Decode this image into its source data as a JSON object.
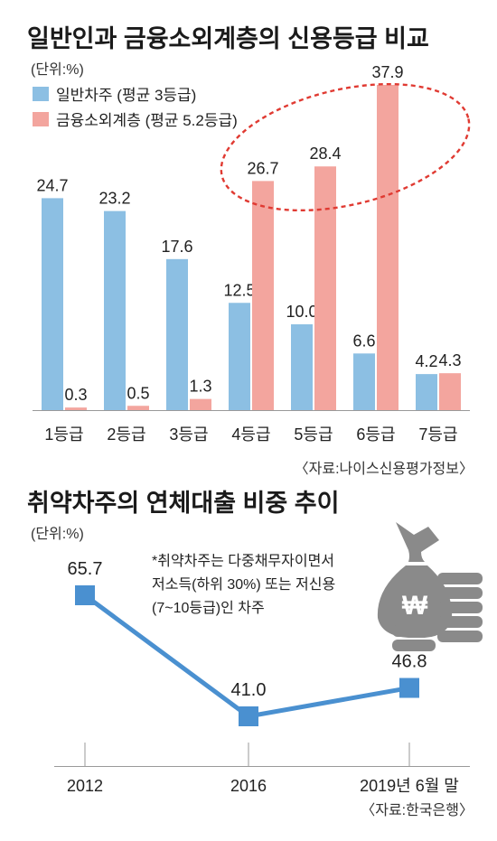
{
  "chart_data": [
    {
      "type": "bar",
      "title": "일반인과 금융소외계층의 신용등급 비교",
      "unit": "(단위:%)",
      "categories": [
        "1등급",
        "2등급",
        "3등급",
        "4등급",
        "5등급",
        "6등급",
        "7등급"
      ],
      "series": [
        {
          "name": "일반차주 (평균 3등급)",
          "color": "#8cbfe3",
          "values": [
            24.7,
            23.2,
            17.6,
            12.5,
            10.0,
            6.6,
            4.2
          ]
        },
        {
          "name": "금융소외계층 (평균 5.2등급)",
          "color": "#f3a59e",
          "values": [
            0.3,
            0.5,
            1.3,
            26.7,
            28.4,
            37.9,
            4.3
          ]
        }
      ],
      "ylim": [
        0,
        37.9
      ],
      "legend": "top-left",
      "grid": false,
      "annotation": "highlight ellipse around 4등급~6등급 금융소외계층 values",
      "source": "〈자료:나이스신용평가정보〉"
    },
    {
      "type": "line",
      "title": "취약차주의 연체대출 비중 추이",
      "unit": "(단위:%)",
      "categories": [
        "2012",
        "2016",
        "2019년 6월 말"
      ],
      "series": [
        {
          "name": "",
          "color": "#4a90d0",
          "values": [
            65.7,
            41.0,
            46.8
          ]
        }
      ],
      "ylim": [
        41.0,
        65.7
      ],
      "grid": false,
      "note": [
        "*취약차주는 다중채무자이면서",
        "저소득(하위 30%) 또는 저신용",
        "(7~10등급)인 차주"
      ],
      "icon": "money-bag-coins-icon",
      "source": "〈자료:한국은행〉"
    }
  ]
}
